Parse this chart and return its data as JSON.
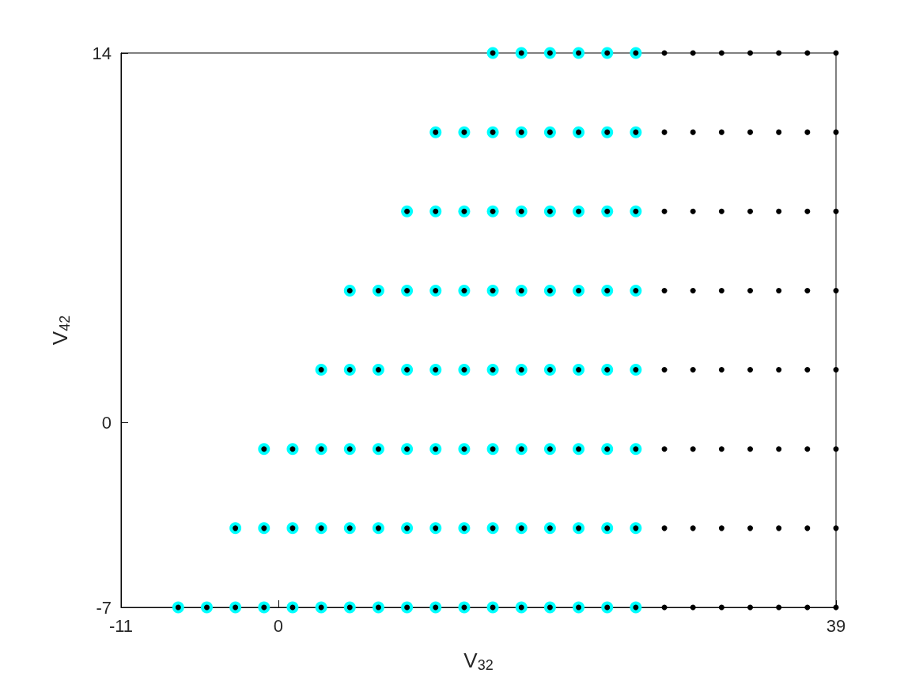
{
  "chart_data": {
    "type": "scatter",
    "xlabel": "V$_{32}$",
    "ylabel": "V$_{42}$",
    "xlim": [
      -11,
      39
    ],
    "ylim": [
      -7,
      14
    ],
    "xticks": [
      -11,
      0,
      39
    ],
    "yticks": [
      -7,
      0,
      14
    ],
    "marker": "circle",
    "series": [
      {
        "color": "#00ffff",
        "x": [
          -7,
          -5,
          -3,
          -1,
          1,
          3,
          5,
          7,
          9,
          11,
          13,
          15,
          17,
          19,
          21,
          23,
          25,
          -3,
          -1,
          1,
          3,
          5,
          7,
          9,
          11,
          13,
          15,
          17,
          19,
          21,
          23,
          25,
          -1,
          1,
          3,
          5,
          7,
          9,
          11,
          13,
          15,
          17,
          19,
          21,
          23,
          25,
          3,
          5,
          7,
          9,
          11,
          13,
          15,
          17,
          19,
          21,
          23,
          25,
          5,
          7,
          9,
          11,
          13,
          15,
          17,
          19,
          21,
          23,
          25,
          9,
          11,
          13,
          15,
          17,
          19,
          21,
          23,
          25,
          11,
          13,
          15,
          17,
          19,
          21,
          23,
          25,
          15,
          17,
          19,
          21,
          23,
          25
        ],
        "values": [
          -7,
          -7,
          -7,
          -7,
          -7,
          -7,
          -7,
          -7,
          -7,
          -7,
          -7,
          -7,
          -7,
          -7,
          -7,
          -7,
          -7,
          -4,
          -4,
          -4,
          -4,
          -4,
          -4,
          -4,
          -4,
          -4,
          -4,
          -4,
          -4,
          -4,
          -4,
          -4,
          -1,
          -1,
          -1,
          -1,
          -1,
          -1,
          -1,
          -1,
          -1,
          -1,
          -1,
          -1,
          -1,
          -1,
          2,
          2,
          2,
          2,
          2,
          2,
          2,
          2,
          2,
          2,
          2,
          2,
          5,
          5,
          5,
          5,
          5,
          5,
          5,
          5,
          5,
          5,
          5,
          8,
          8,
          8,
          8,
          8,
          8,
          8,
          8,
          8,
          11,
          11,
          11,
          11,
          11,
          11,
          11,
          11,
          14,
          14,
          14,
          14,
          14,
          14
        ]
      },
      {
        "color": "#000000",
        "x": [
          -7,
          -5,
          -3,
          -1,
          1,
          3,
          5,
          7,
          9,
          11,
          13,
          15,
          17,
          19,
          21,
          23,
          25,
          27,
          29,
          31,
          33,
          35,
          37,
          39,
          -3,
          -1,
          1,
          3,
          5,
          7,
          9,
          11,
          13,
          15,
          17,
          19,
          21,
          23,
          25,
          27,
          29,
          31,
          33,
          35,
          37,
          39,
          -1,
          1,
          3,
          5,
          7,
          9,
          11,
          13,
          15,
          17,
          19,
          21,
          23,
          25,
          27,
          29,
          31,
          33,
          35,
          37,
          39,
          3,
          5,
          7,
          9,
          11,
          13,
          15,
          17,
          19,
          21,
          23,
          25,
          27,
          29,
          31,
          33,
          35,
          37,
          39,
          5,
          7,
          9,
          11,
          13,
          15,
          17,
          19,
          21,
          23,
          25,
          27,
          29,
          31,
          33,
          35,
          37,
          39,
          9,
          11,
          13,
          15,
          17,
          19,
          21,
          23,
          25,
          27,
          29,
          31,
          33,
          35,
          37,
          39,
          11,
          13,
          15,
          17,
          19,
          21,
          23,
          25,
          27,
          29,
          31,
          33,
          35,
          37,
          39,
          15,
          17,
          19,
          21,
          23,
          25,
          27,
          29,
          31,
          33,
          35,
          37,
          39
        ],
        "values": [
          -7,
          -7,
          -7,
          -7,
          -7,
          -7,
          -7,
          -7,
          -7,
          -7,
          -7,
          -7,
          -7,
          -7,
          -7,
          -7,
          -7,
          -7,
          -7,
          -7,
          -7,
          -7,
          -7,
          -7,
          -4,
          -4,
          -4,
          -4,
          -4,
          -4,
          -4,
          -4,
          -4,
          -4,
          -4,
          -4,
          -4,
          -4,
          -4,
          -4,
          -4,
          -4,
          -4,
          -4,
          -4,
          -4,
          -1,
          -1,
          -1,
          -1,
          -1,
          -1,
          -1,
          -1,
          -1,
          -1,
          -1,
          -1,
          -1,
          -1,
          -1,
          -1,
          -1,
          -1,
          -1,
          -1,
          -1,
          2,
          2,
          2,
          2,
          2,
          2,
          2,
          2,
          2,
          2,
          2,
          2,
          2,
          2,
          2,
          2,
          2,
          2,
          2,
          5,
          5,
          5,
          5,
          5,
          5,
          5,
          5,
          5,
          5,
          5,
          5,
          5,
          5,
          5,
          5,
          5,
          5,
          8,
          8,
          8,
          8,
          8,
          8,
          8,
          8,
          8,
          8,
          8,
          8,
          8,
          8,
          8,
          8,
          11,
          11,
          11,
          11,
          11,
          11,
          11,
          11,
          11,
          11,
          11,
          11,
          11,
          11,
          11,
          14,
          14,
          14,
          14,
          14,
          14,
          14,
          14,
          14,
          14,
          14,
          14,
          14
        ]
      }
    ]
  }
}
